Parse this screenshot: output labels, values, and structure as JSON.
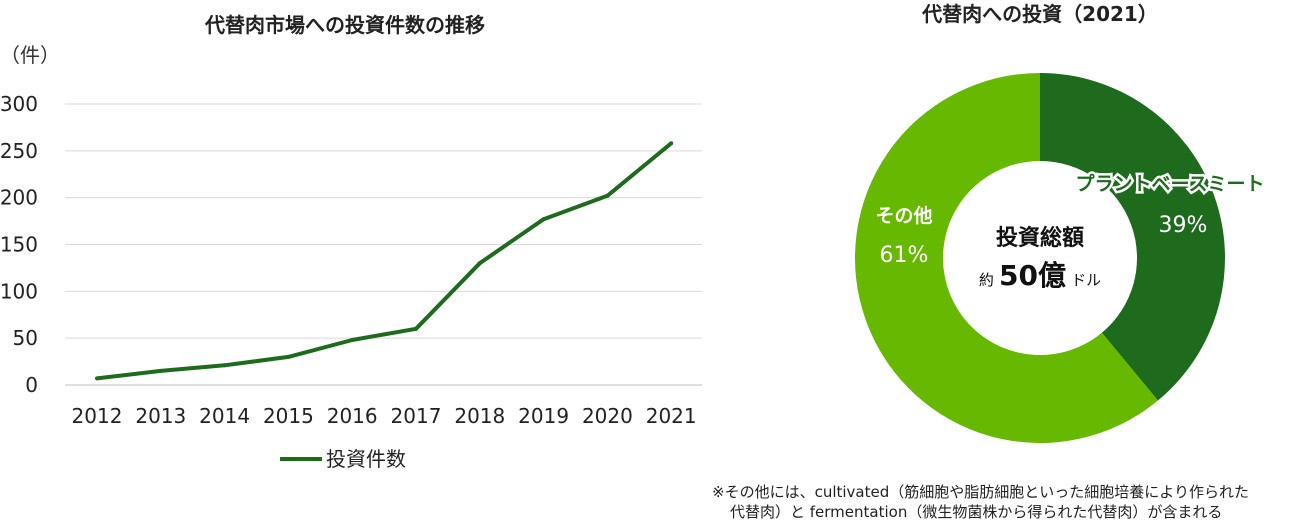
{
  "chart_data": [
    {
      "type": "line",
      "title": "代替肉市場への投資件数の推移",
      "ylabel": "（件）",
      "xlabel": "",
      "categories": [
        "2012",
        "2013",
        "2014",
        "2015",
        "2016",
        "2017",
        "2018",
        "2019",
        "2020",
        "2021"
      ],
      "series": [
        {
          "name": "投資件数",
          "values": [
            7,
            15,
            21,
            30,
            48,
            60,
            130,
            177,
            202,
            258
          ]
        }
      ],
      "ylim": [
        0,
        300
      ],
      "yticks": [
        "0",
        "50",
        "100",
        "150",
        "200",
        "250",
        "300"
      ],
      "grid": true,
      "legend": "bottom",
      "color": "#1e6b1e"
    },
    {
      "type": "pie",
      "title": "代替肉への投資（2021）",
      "slices": [
        {
          "name": "プラントベースミート",
          "value": 39,
          "label": "39%",
          "color": "#1e6b1e"
        },
        {
          "name": "その他",
          "value": 61,
          "label": "61%",
          "color": "#66b800"
        }
      ],
      "center": {
        "title": "投資総額",
        "prefix": "約",
        "amount": "50億",
        "suffix": "ドル"
      }
    }
  ],
  "footnote": {
    "line1": "※その他には、cultivated（筋細胞や脂肪細胞といった細胞培養により作られた",
    "line2": "代替肉）と fermentation（微生物菌株から得られた代替肉）が含まれる"
  }
}
